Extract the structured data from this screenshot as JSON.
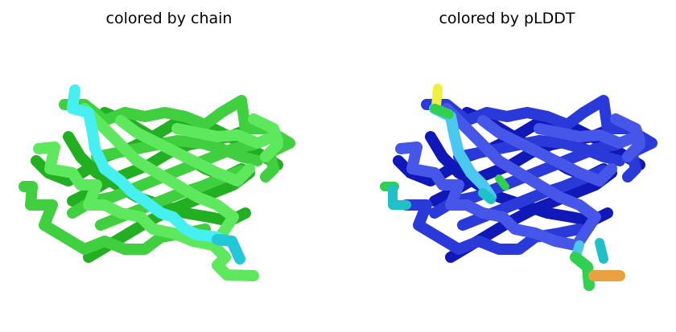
{
  "panels": [
    {
      "title": "colored by chain",
      "colors": {
        "back": "#22b022",
        "mid": "#3fcf3f",
        "front": "#5ee85e",
        "highlight": "#46f0f0",
        "highlight_end": "#22c8d8"
      }
    },
    {
      "title": "colored by pLDDT",
      "colors": {
        "back": "#1018b8",
        "mid": "#2a3ad8",
        "front": "#4656e8",
        "highlight": "#4ac8f0",
        "accent_yellow": "#f0f040",
        "accent_green": "#30d050",
        "accent_teal": "#20c0c8",
        "accent_orange": "#e8a040"
      }
    }
  ]
}
